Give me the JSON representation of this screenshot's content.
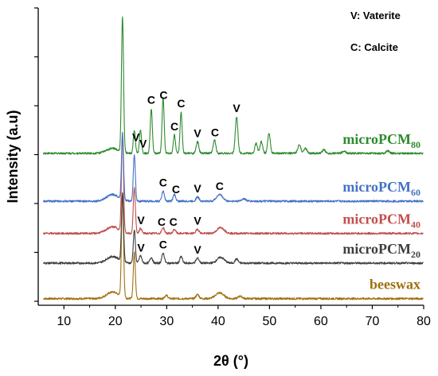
{
  "chart_data": {
    "type": "line",
    "title": "",
    "xlabel": "2θ (°)",
    "ylabel": "Intensity (a.u)",
    "xlim": [
      5,
      80
    ],
    "x_ticks": [
      10,
      20,
      30,
      40,
      50,
      60,
      70,
      80
    ],
    "grid": false,
    "legend": {
      "placement": "top-right",
      "entries": [
        "V: Vaterite",
        "C: Calcite"
      ]
    },
    "series": [
      {
        "name": "beeswax",
        "base": "beeswax",
        "sub": "",
        "color": "#a0700f",
        "baseline": 0.04,
        "peaks": [
          [
            19.5,
            0.04,
            1.2
          ],
          [
            21.4,
            0.62,
            0.2
          ],
          [
            23.7,
            0.28,
            0.2
          ],
          [
            29.9,
            0.02,
            0.3
          ],
          [
            36.0,
            0.025,
            0.3
          ],
          [
            40.3,
            0.035,
            0.8
          ],
          [
            44.3,
            0.015,
            0.4
          ]
        ]
      },
      {
        "name": "microPCM20",
        "base": "microPCM",
        "sub": "20",
        "color": "#3f3f3f",
        "baseline": 0.255,
        "peaks": [
          [
            19.5,
            0.04,
            1.2
          ],
          [
            21.4,
            0.42,
            0.2
          ],
          [
            23.7,
            0.2,
            0.2
          ],
          [
            24.9,
            0.045,
            0.25
          ],
          [
            27.0,
            0.035,
            0.25
          ],
          [
            29.3,
            0.06,
            0.25
          ],
          [
            32.8,
            0.04,
            0.25
          ],
          [
            36.0,
            0.03,
            0.3
          ],
          [
            40.5,
            0.035,
            0.7
          ],
          [
            43.6,
            0.025,
            0.3
          ]
        ]
      },
      {
        "name": "microPCM40",
        "base": "microPCM",
        "sub": "40",
        "color": "#c0504d",
        "baseline": 0.435,
        "peaks": [
          [
            19.5,
            0.04,
            1.2
          ],
          [
            21.4,
            0.58,
            0.2
          ],
          [
            23.7,
            0.28,
            0.2
          ],
          [
            24.9,
            0.03,
            0.25
          ],
          [
            29.3,
            0.035,
            0.25
          ],
          [
            31.5,
            0.025,
            0.25
          ],
          [
            36.0,
            0.025,
            0.3
          ],
          [
            40.5,
            0.035,
            0.7
          ]
        ]
      },
      {
        "name": "microPCM60",
        "base": "microPCM",
        "sub": "60",
        "color": "#4472c4",
        "baseline": 0.63,
        "peaks": [
          [
            19.5,
            0.04,
            1.2
          ],
          [
            21.4,
            0.4,
            0.2
          ],
          [
            23.7,
            0.28,
            0.2
          ],
          [
            29.3,
            0.06,
            0.25
          ],
          [
            31.5,
            0.04,
            0.25
          ],
          [
            36.0,
            0.025,
            0.3
          ],
          [
            40.3,
            0.04,
            0.6
          ],
          [
            45.0,
            0.015,
            0.4
          ]
        ]
      },
      {
        "name": "microPCM80",
        "base": "microPCM",
        "sub": "80",
        "color": "#2e8b2e",
        "baseline": 0.92,
        "peaks": [
          [
            19.5,
            0.03,
            1.2
          ],
          [
            21.4,
            0.82,
            0.2
          ],
          [
            23.7,
            0.14,
            0.2
          ],
          [
            24.9,
            0.14,
            0.2
          ],
          [
            27.0,
            0.27,
            0.2
          ],
          [
            29.3,
            0.34,
            0.2
          ],
          [
            31.5,
            0.11,
            0.2
          ],
          [
            32.8,
            0.25,
            0.2
          ],
          [
            36.0,
            0.07,
            0.25
          ],
          [
            39.3,
            0.08,
            0.25
          ],
          [
            43.6,
            0.22,
            0.25
          ],
          [
            47.4,
            0.06,
            0.25
          ],
          [
            48.4,
            0.07,
            0.25
          ],
          [
            49.9,
            0.12,
            0.25
          ],
          [
            55.8,
            0.05,
            0.3
          ],
          [
            57.0,
            0.03,
            0.3
          ],
          [
            60.6,
            0.02,
            0.3
          ],
          [
            64.5,
            0.015,
            0.3
          ],
          [
            73.0,
            0.015,
            0.3
          ]
        ]
      }
    ],
    "annotations": [
      {
        "text": "V",
        "x": 24.0,
        "series": "microPCM80"
      },
      {
        "text": "V",
        "x": 25.4,
        "series": "microPCM80"
      },
      {
        "text": "C",
        "x": 27.0,
        "series": "microPCM80"
      },
      {
        "text": "C",
        "x": 29.4,
        "series": "microPCM80"
      },
      {
        "text": "C",
        "x": 31.5,
        "series": "microPCM80"
      },
      {
        "text": "C",
        "x": 32.8,
        "series": "microPCM80"
      },
      {
        "text": "V",
        "x": 36.0,
        "series": "microPCM80"
      },
      {
        "text": "C",
        "x": 39.4,
        "series": "microPCM80"
      },
      {
        "text": "V",
        "x": 43.6,
        "series": "microPCM80"
      },
      {
        "text": "C",
        "x": 29.3,
        "series": "microPCM60"
      },
      {
        "text": "C",
        "x": 31.8,
        "series": "microPCM60"
      },
      {
        "text": "V",
        "x": 36.0,
        "series": "microPCM60"
      },
      {
        "text": "C",
        "x": 40.3,
        "series": "microPCM60"
      },
      {
        "text": "V",
        "x": 25.0,
        "series": "microPCM40"
      },
      {
        "text": "C",
        "x": 29.0,
        "series": "microPCM40"
      },
      {
        "text": "C",
        "x": 31.3,
        "series": "microPCM40"
      },
      {
        "text": "V",
        "x": 36.0,
        "series": "microPCM40"
      },
      {
        "text": "V",
        "x": 25.0,
        "series": "microPCM20"
      },
      {
        "text": "C",
        "x": 29.3,
        "series": "microPCM20"
      },
      {
        "text": "V",
        "x": 36.0,
        "series": "microPCM20"
      }
    ]
  }
}
